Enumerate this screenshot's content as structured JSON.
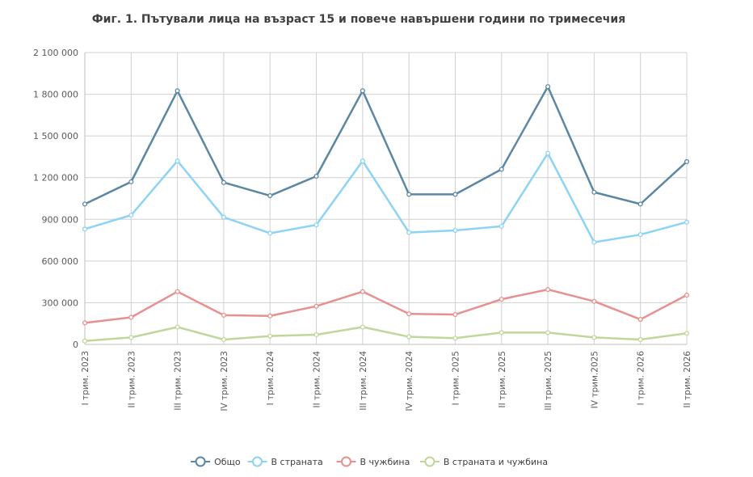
{
  "chart_data": {
    "type": "line",
    "title": "Фиг. 1. Пътували лица на възраст 15 и повече навършени години по тримесечия",
    "xlabel": "",
    "ylabel": "",
    "categories": [
      "I трим. 2023",
      "II трим. 2023",
      "III трим. 2023",
      "IV трим. 2023",
      "I трим. 2024",
      "II трим. 2024",
      "III трим. 2024",
      "IV трим. 2024",
      "I трим. 2025",
      "II трим. 2025",
      "III трим. 2025",
      "IV трим.2025",
      "I трим. 2026",
      "II трим. 2026"
    ],
    "ylim": [
      0,
      2100000
    ],
    "yticks": [
      0,
      300000,
      600000,
      900000,
      1200000,
      1500000,
      1800000,
      2100000
    ],
    "ytick_labels": [
      "0",
      "300 000",
      "600 000",
      "900 000",
      "1 200 000",
      "1 500 000",
      "1 800 000",
      "2 100 000"
    ],
    "grid": true,
    "legend_position": "bottom",
    "series": [
      {
        "name": "Общо",
        "color": "#5b87a3",
        "values": [
          1010000,
          1170000,
          1825000,
          1165000,
          1070000,
          1210000,
          1825000,
          1080000,
          1080000,
          1260000,
          1855000,
          1095000,
          1010000,
          1315000
        ]
      },
      {
        "name": "В страната",
        "color": "#8dd3f5",
        "values": [
          830000,
          930000,
          1320000,
          915000,
          800000,
          860000,
          1320000,
          805000,
          820000,
          850000,
          1375000,
          735000,
          790000,
          880000
        ]
      },
      {
        "name": "В чужбина",
        "color": "#e8908f",
        "values": [
          155000,
          195000,
          380000,
          210000,
          205000,
          275000,
          380000,
          220000,
          215000,
          325000,
          395000,
          310000,
          180000,
          355000
        ]
      },
      {
        "name": "В страната и чужбина",
        "color": "#bfd79a",
        "values": [
          25000,
          50000,
          125000,
          35000,
          60000,
          70000,
          125000,
          55000,
          45000,
          85000,
          85000,
          50000,
          35000,
          80000
        ]
      }
    ]
  }
}
